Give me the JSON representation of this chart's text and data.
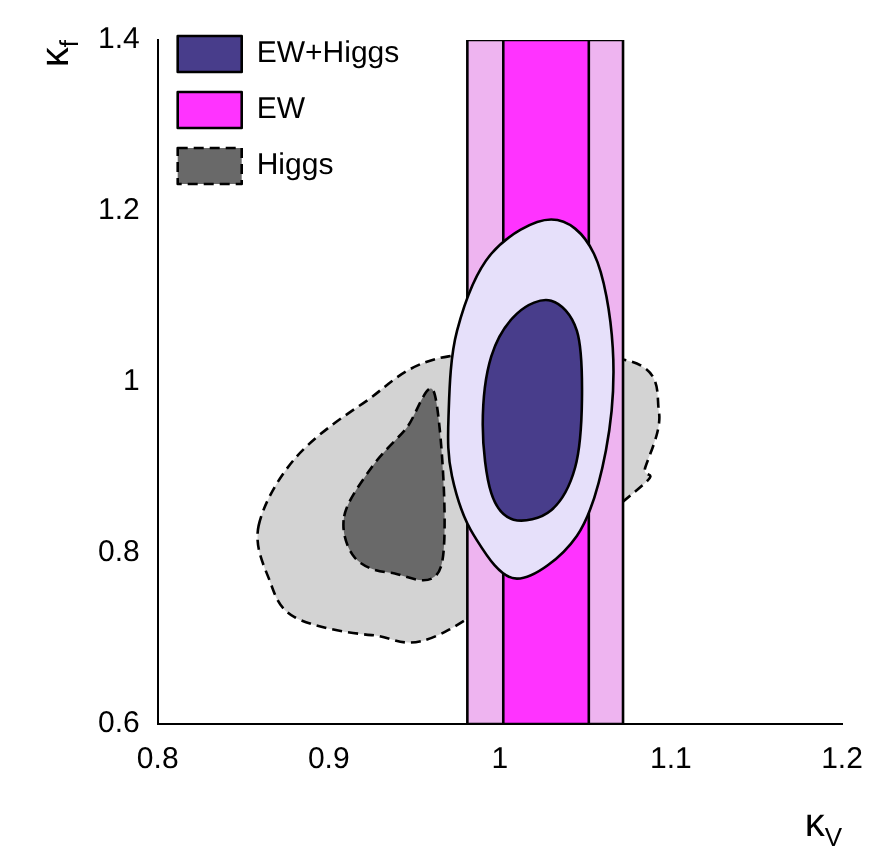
{
  "chart_data": {
    "type": "area",
    "xlabel": "κ$_{V}$",
    "ylabel": "κ$_{f}$",
    "xlim": [
      0.8,
      1.2
    ],
    "xticks": [
      0.8,
      0.9,
      1,
      1.1,
      1.2
    ],
    "ylim": [
      0.6,
      1.4
    ],
    "yticks": [
      0.6,
      0.8,
      1,
      1.2,
      1.4
    ],
    "grid": false,
    "legend": "top left",
    "series": [
      {
        "color": "#d3d3d3",
        "line_style": "dashed",
        "x": [
          0.859,
          0.88,
          0.92,
          0.97,
          1.075,
          1.093,
          1.085,
          1.078,
          0.97,
          0.925,
          0.88,
          0.865,
          0.859
        ],
        "values": [
          0.832,
          0.91,
          0.975,
          1.03,
          1.025,
          0.965,
          0.9,
          0.87,
          0.71,
          0.704,
          0.725,
          0.77,
          0.832
        ]
      },
      {
        "name": "Higgs",
        "color": "#696969",
        "line_style": "dashed",
        "x": [
          0.909,
          0.925,
          0.945,
          0.962,
          0.966,
          0.936,
          0.915,
          0.909
        ],
        "values": [
          0.843,
          0.9,
          0.945,
          0.985,
          0.787,
          0.777,
          0.795,
          0.843
        ]
      },
      {
        "color": "#eeb4f0",
        "line_style": "solid",
        "x": [
          0.981,
          1.072,
          1.072,
          0.981,
          0.981
        ],
        "values": [
          0.6,
          0.6,
          1.4,
          1.4,
          0.6
        ]
      },
      {
        "name": "EW",
        "color": "#ff33ff",
        "line_style": "solid",
        "x": [
          1.002,
          1.052,
          1.052,
          1.002,
          1.002
        ],
        "values": [
          0.6,
          0.6,
          1.4,
          1.4,
          0.6
        ]
      },
      {
        "color": "#e6e0fa",
        "line_style": "solid",
        "x": [
          0.97,
          0.975,
          0.995,
          1.03,
          1.055,
          1.066,
          1.062,
          1.045,
          1.01,
          0.985,
          0.972,
          0.97
        ],
        "values": [
          0.96,
          1.06,
          1.15,
          1.19,
          1.15,
          1.04,
          0.92,
          0.82,
          0.77,
          0.82,
          0.89,
          0.96
        ]
      },
      {
        "name": "EW+Higgs",
        "color": "#483d8b",
        "line_style": "solid",
        "x": [
          0.99,
          0.995,
          1.01,
          1.03,
          1.045,
          1.048,
          1.044,
          1.03,
          1.008,
          0.995,
          0.99
        ],
        "values": [
          0.95,
          1.03,
          1.08,
          1.095,
          1.06,
          0.98,
          0.9,
          0.85,
          0.839,
          0.87,
          0.95
        ]
      }
    ]
  }
}
